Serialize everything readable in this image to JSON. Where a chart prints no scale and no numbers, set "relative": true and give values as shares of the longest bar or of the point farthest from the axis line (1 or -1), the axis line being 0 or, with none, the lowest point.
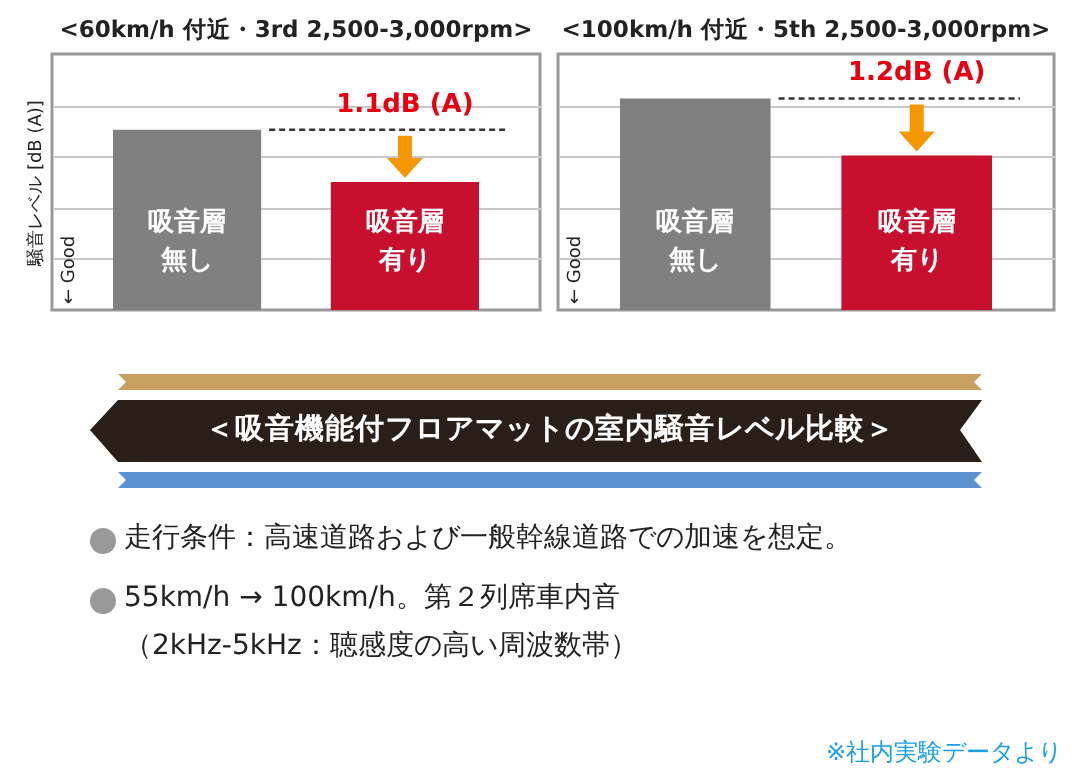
{
  "chart_data": [
    {
      "type": "bar",
      "title": "<60km/h 付近・3rd 2,500-3,000rpm>",
      "ylabel": "騒音レベル [dB (A)]",
      "relative": true,
      "grid": "y",
      "categories": [
        "吸音層無し",
        "吸音層有り"
      ],
      "values": [
        1,
        0.71
      ],
      "colors": [
        "#808080",
        "#c8102e"
      ],
      "annotations": [
        "1.1dB (A)",
        "← Good"
      ]
    },
    {
      "type": "bar",
      "title": "<100km/h 付近・5th 2,500-3,000rpm>",
      "relative": true,
      "grid": "y",
      "categories": [
        "吸音層無し",
        "吸音層有り"
      ],
      "values": [
        1,
        0.73
      ],
      "colors": [
        "#808080",
        "#c8102e"
      ],
      "annotations": [
        "1.2dB (A)",
        "← Good"
      ]
    },
    {
      "type": "other",
      "title": "＜吸音機能付フロアマットの室内騒音レベル比較＞",
      "annotations": [
        "走行条件：高速道路および一般幹線道路での加速を想定。",
        "55km/h → 100km/h。第２列席車内音",
        "（2kHz-5kHz：聴感度の高い周波数帯）",
        "※社内実験データより"
      ]
    }
  ]
}
